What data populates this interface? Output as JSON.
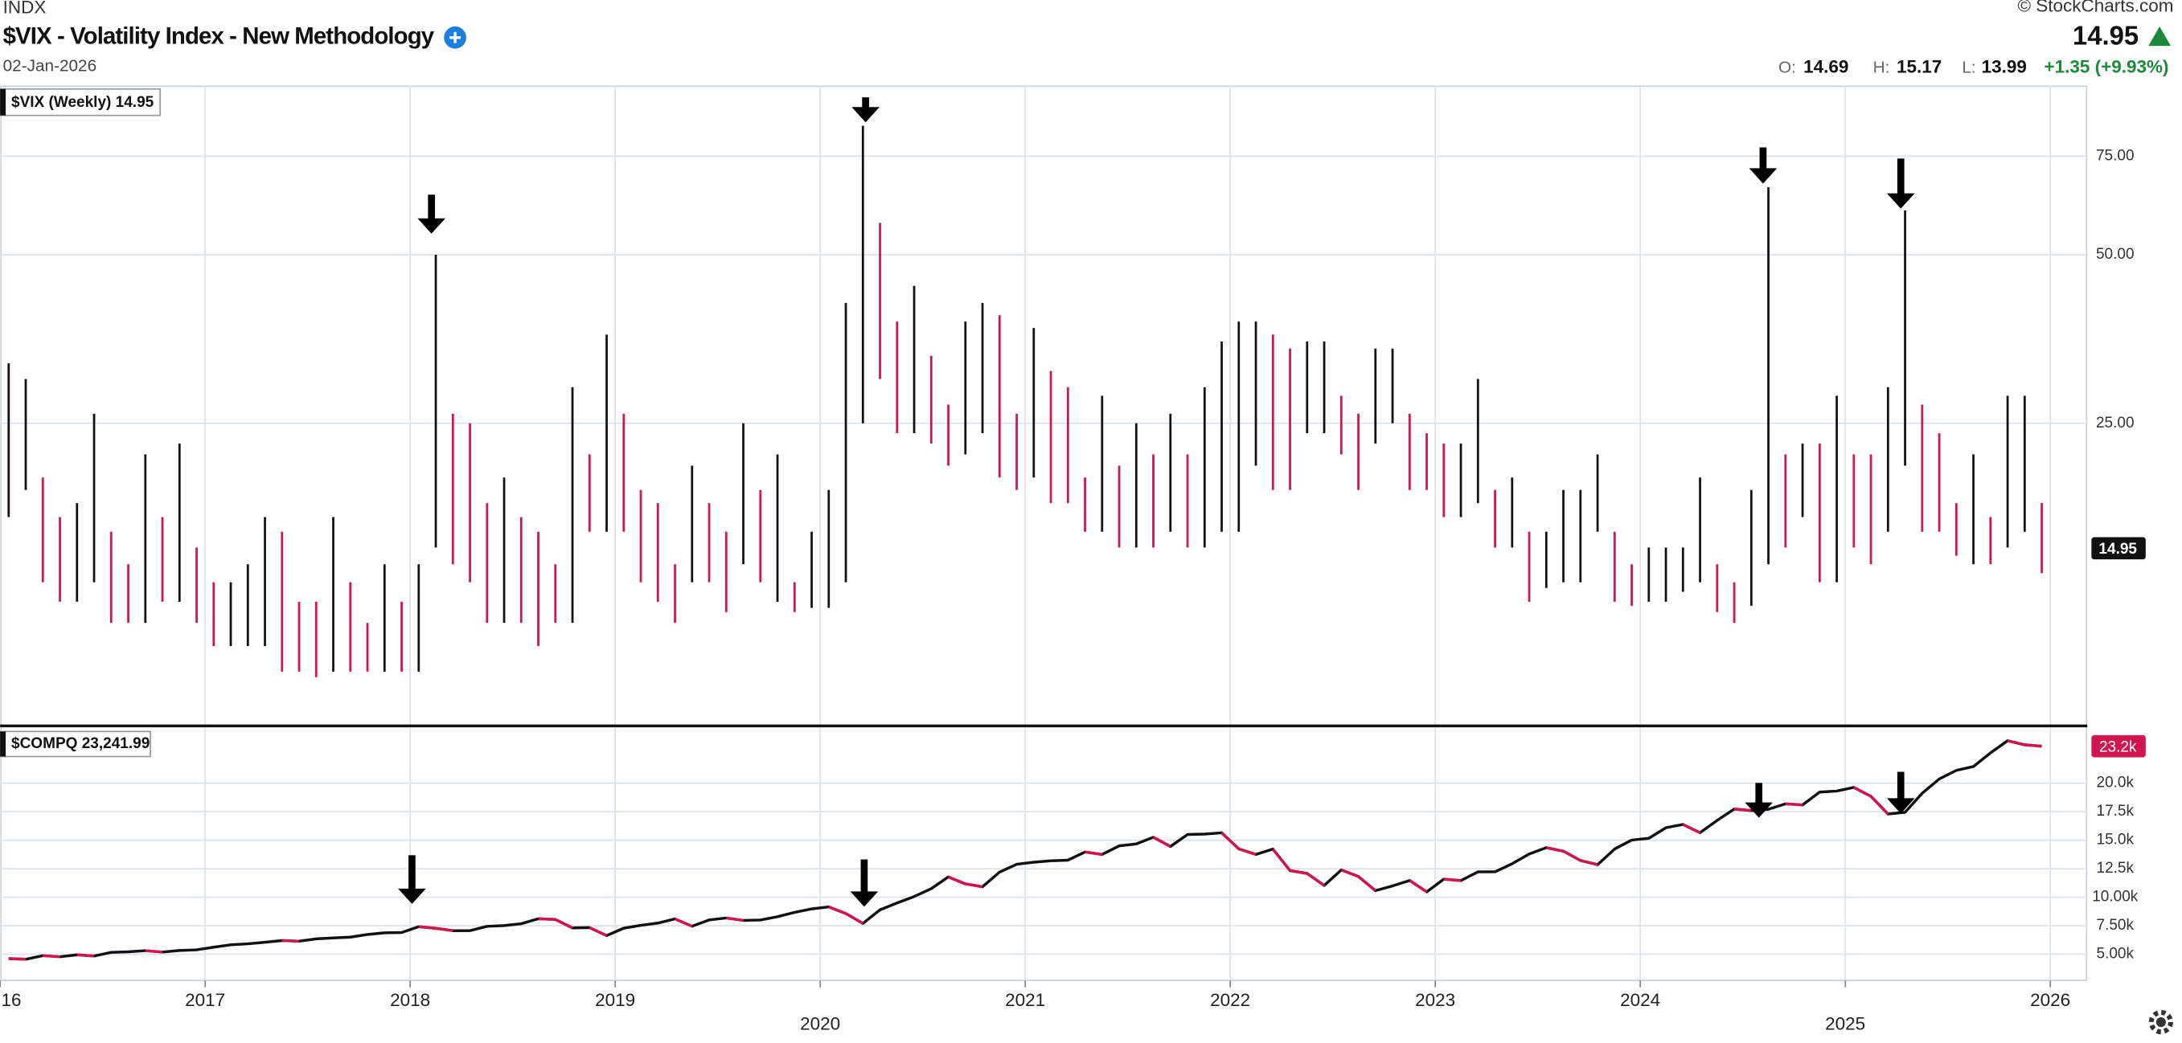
{
  "header": {
    "exchange": "INDX",
    "title": "$VIX - Volatility Index - New Methodology",
    "date": "02-Jan-2026",
    "copyright": "© StockCharts.com",
    "last": "14.95",
    "o_label": "O:",
    "open": "14.69",
    "h_label": "H:",
    "high": "15.17",
    "l_label": "L:",
    "low": "13.99",
    "change": "+1.35 (+9.93%)"
  },
  "chart_data": [
    {
      "type": "hilo",
      "legend": "$VIX (Weekly) 14.95",
      "scale": "log",
      "colors": {
        "up": "#111111",
        "down": "#d1154f"
      },
      "xlim": [
        "2016-01",
        "2026-03"
      ],
      "ylim": [
        7.2,
        100
      ],
      "yticks": [
        {
          "value": 25,
          "label": "25.00"
        },
        {
          "value": 50,
          "label": "50.00"
        },
        {
          "value": 75,
          "label": "75.00"
        }
      ],
      "last": 14.95,
      "x": [
        "2016-01",
        "2016-02",
        "2016-03",
        "2016-04",
        "2016-05",
        "2016-06",
        "2016-07",
        "2016-08",
        "2016-09",
        "2016-10",
        "2016-11",
        "2016-12",
        "2017-01",
        "2017-02",
        "2017-03",
        "2017-04",
        "2017-05",
        "2017-06",
        "2017-07",
        "2017-08",
        "2017-09",
        "2017-10",
        "2017-11",
        "2017-12",
        "2018-01",
        "2018-02",
        "2018-03",
        "2018-04",
        "2018-05",
        "2018-06",
        "2018-07",
        "2018-08",
        "2018-09",
        "2018-10",
        "2018-11",
        "2018-12",
        "2019-01",
        "2019-02",
        "2019-03",
        "2019-04",
        "2019-05",
        "2019-06",
        "2019-07",
        "2019-08",
        "2019-09",
        "2019-10",
        "2019-11",
        "2019-12",
        "2020-01",
        "2020-02",
        "2020-03",
        "2020-04",
        "2020-05",
        "2020-06",
        "2020-07",
        "2020-08",
        "2020-09",
        "2020-10",
        "2020-11",
        "2020-12",
        "2021-01",
        "2021-02",
        "2021-03",
        "2021-04",
        "2021-05",
        "2021-06",
        "2021-07",
        "2021-08",
        "2021-09",
        "2021-10",
        "2021-11",
        "2021-12",
        "2022-01",
        "2022-02",
        "2022-03",
        "2022-04",
        "2022-05",
        "2022-06",
        "2022-07",
        "2022-08",
        "2022-09",
        "2022-10",
        "2022-11",
        "2022-12",
        "2023-01",
        "2023-02",
        "2023-03",
        "2023-04",
        "2023-05",
        "2023-06",
        "2023-07",
        "2023-08",
        "2023-09",
        "2023-10",
        "2023-11",
        "2023-12",
        "2024-01",
        "2024-02",
        "2024-03",
        "2024-04",
        "2024-05",
        "2024-06",
        "2024-07",
        "2024-08",
        "2024-09",
        "2024-10",
        "2024-11",
        "2024-12",
        "2025-01",
        "2025-02",
        "2025-03",
        "2025-04",
        "2025-05",
        "2025-06",
        "2025-07",
        "2025-08",
        "2025-09",
        "2025-10",
        "2025-11",
        "2025-12"
      ],
      "high": [
        32,
        30,
        20,
        17,
        18,
        26,
        16,
        14,
        22,
        17,
        23,
        15,
        13,
        13,
        14,
        17,
        16,
        12,
        12,
        17,
        13,
        11,
        14,
        12,
        14,
        50,
        26,
        25,
        18,
        20,
        17,
        16,
        14,
        29,
        22,
        36,
        26,
        19,
        18,
        14,
        21,
        18,
        16,
        25,
        19,
        22,
        13,
        16,
        19,
        41,
        85,
        57,
        38,
        44,
        33,
        27,
        38,
        41,
        39,
        26,
        37,
        31,
        29,
        20,
        28,
        21,
        25,
        22,
        26,
        22,
        29,
        35,
        38,
        38,
        36,
        34,
        35,
        35,
        28,
        26,
        34,
        34,
        26,
        24,
        23,
        23,
        30,
        19,
        20,
        16,
        16,
        19,
        19,
        22,
        16,
        14,
        15,
        15,
        15,
        20,
        14,
        13,
        19,
        66,
        22,
        23,
        23,
        28,
        22,
        22,
        29,
        60,
        27,
        24,
        18,
        22,
        17,
        28,
        28,
        18
      ],
      "low": [
        17,
        19,
        13,
        12,
        12,
        13,
        11,
        11,
        11,
        12,
        12,
        11,
        10,
        10,
        10,
        10,
        9,
        9,
        8.8,
        9,
        9,
        9,
        9,
        9,
        9,
        15,
        14,
        13,
        11,
        11,
        11,
        10,
        11,
        11,
        16,
        16,
        16,
        13,
        12,
        11,
        13,
        13,
        11.5,
        14,
        13,
        12,
        11.5,
        11.7,
        11.7,
        13,
        25,
        30,
        24,
        24,
        23,
        21,
        22,
        24,
        20,
        19,
        20,
        18,
        18,
        16,
        16,
        15,
        15,
        15,
        16,
        15,
        15,
        16,
        16,
        21,
        19,
        19,
        24,
        24,
        22,
        19,
        23,
        25,
        19,
        19,
        17,
        17,
        18,
        15,
        15,
        12,
        12.7,
        13,
        13,
        16,
        12,
        11.8,
        12,
        12,
        12.5,
        13,
        11.5,
        11,
        11.8,
        14,
        15,
        17,
        13,
        13,
        15,
        14,
        16,
        21,
        16,
        16,
        14.5,
        14,
        14,
        15,
        16,
        13.5
      ]
    },
    {
      "type": "line",
      "legend": "$COMPQ 23,241.99",
      "color": "#111111",
      "down_color": "#d1154f",
      "xlim": [
        "2016-01",
        "2026-03"
      ],
      "ylim": [
        2700,
        24900
      ],
      "xticks": [
        {
          "value": "2016-01",
          "label": "16"
        },
        {
          "value": "2017-01",
          "label": "2017"
        },
        {
          "value": "2018-01",
          "label": "2018"
        },
        {
          "value": "2019-01",
          "label": "2019"
        },
        {
          "value": "2020-01",
          "label": "2020"
        },
        {
          "value": "2021-01",
          "label": "2021"
        },
        {
          "value": "2022-01",
          "label": "2022"
        },
        {
          "value": "2023-01",
          "label": "2023"
        },
        {
          "value": "2024-01",
          "label": "2024"
        },
        {
          "value": "2025-01",
          "label": "2025"
        },
        {
          "value": "2026-01",
          "label": "2026"
        }
      ],
      "yticks": [
        {
          "value": 5000,
          "label": "5.00k"
        },
        {
          "value": 7500,
          "label": "7.50k"
        },
        {
          "value": 10000,
          "label": "10.00k"
        },
        {
          "value": 12500,
          "label": "12.5k"
        },
        {
          "value": 15000,
          "label": "15.0k"
        },
        {
          "value": 17500,
          "label": "17.5k"
        },
        {
          "value": 20000,
          "label": "20.0k"
        }
      ],
      "last": {
        "value": 23241.99,
        "label": "23.2k"
      },
      "x": [
        "2016-01",
        "2016-02",
        "2016-03",
        "2016-04",
        "2016-05",
        "2016-06",
        "2016-07",
        "2016-08",
        "2016-09",
        "2016-10",
        "2016-11",
        "2016-12",
        "2017-01",
        "2017-02",
        "2017-03",
        "2017-04",
        "2017-05",
        "2017-06",
        "2017-07",
        "2017-08",
        "2017-09",
        "2017-10",
        "2017-11",
        "2017-12",
        "2018-01",
        "2018-02",
        "2018-03",
        "2018-04",
        "2018-05",
        "2018-06",
        "2018-07",
        "2018-08",
        "2018-09",
        "2018-10",
        "2018-11",
        "2018-12",
        "2019-01",
        "2019-02",
        "2019-03",
        "2019-04",
        "2019-05",
        "2019-06",
        "2019-07",
        "2019-08",
        "2019-09",
        "2019-10",
        "2019-11",
        "2019-12",
        "2020-01",
        "2020-02",
        "2020-03",
        "2020-04",
        "2020-05",
        "2020-06",
        "2020-07",
        "2020-08",
        "2020-09",
        "2020-10",
        "2020-11",
        "2020-12",
        "2021-01",
        "2021-02",
        "2021-03",
        "2021-04",
        "2021-05",
        "2021-06",
        "2021-07",
        "2021-08",
        "2021-09",
        "2021-10",
        "2021-11",
        "2021-12",
        "2022-01",
        "2022-02",
        "2022-03",
        "2022-04",
        "2022-05",
        "2022-06",
        "2022-07",
        "2022-08",
        "2022-09",
        "2022-10",
        "2022-11",
        "2022-12",
        "2023-01",
        "2023-02",
        "2023-03",
        "2023-04",
        "2023-05",
        "2023-06",
        "2023-07",
        "2023-08",
        "2023-09",
        "2023-10",
        "2023-11",
        "2023-12",
        "2024-01",
        "2024-02",
        "2024-03",
        "2024-04",
        "2024-05",
        "2024-06",
        "2024-07",
        "2024-08",
        "2024-09",
        "2024-10",
        "2024-11",
        "2024-12",
        "2025-01",
        "2025-02",
        "2025-03",
        "2025-04",
        "2025-05",
        "2025-06",
        "2025-07",
        "2025-08",
        "2025-09",
        "2025-10",
        "2025-11",
        "2025-12"
      ],
      "values": [
        4614,
        4558,
        4870,
        4775,
        4948,
        4843,
        5162,
        5213,
        5312,
        5189,
        5324,
        5383,
        5615,
        5825,
        5912,
        6048,
        6199,
        6140,
        6348,
        6429,
        6496,
        6728,
        6874,
        6903,
        7411,
        7273,
        7063,
        7066,
        7442,
        7510,
        7672,
        8110,
        8046,
        7306,
        7331,
        6635,
        7282,
        7533,
        7729,
        8095,
        7453,
        8006,
        8175,
        7963,
        7999,
        8292,
        8665,
        8973,
        9151,
        8567,
        7700,
        8890,
        9490,
        10059,
        10745,
        11775,
        11168,
        10912,
        12199,
        12888,
        13071,
        13192,
        13247,
        13962,
        13749,
        14504,
        14673,
        15259,
        14449,
        15498,
        15538,
        15645,
        14240,
        13751,
        14221,
        12335,
        12081,
        11029,
        12391,
        11816,
        10576,
        10988,
        11468,
        10466,
        11585,
        11456,
        12222,
        12227,
        12936,
        13788,
        14346,
        14035,
        13219,
        12851,
        14226,
        15011,
        15164,
        16092,
        16379,
        15658,
        16735,
        17733,
        17599,
        17714,
        18189,
        18095,
        19218,
        19311,
        19627,
        18847,
        17299,
        17446,
        19114,
        20370,
        21122,
        21456,
        22660,
        23725,
        23366,
        23241.99
      ]
    }
  ]
}
